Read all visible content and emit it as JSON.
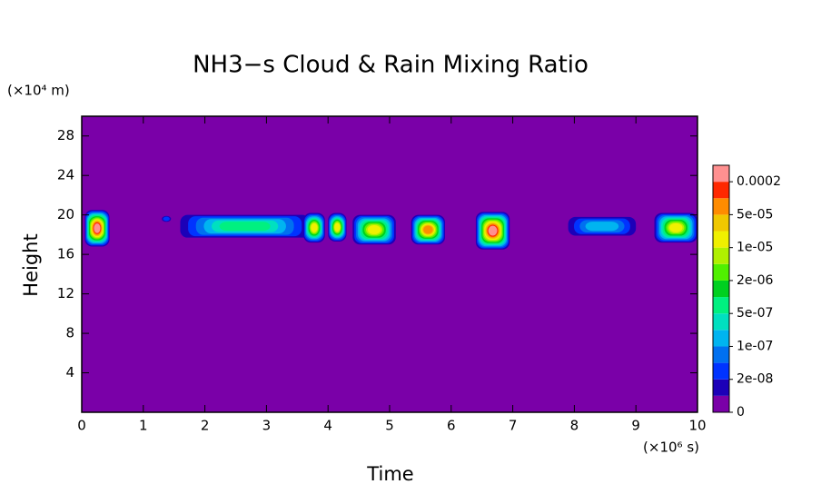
{
  "chart_data": {
    "type": "contour",
    "title": "NH3−s Cloud & Rain Mixing Ratio",
    "x_label": "Time",
    "y_label": "Height",
    "x_unit": "(×10⁶ s)",
    "y_unit": "(×10⁴ m)",
    "xlim": [
      0,
      10
    ],
    "xticks": [
      0,
      1,
      2,
      3,
      4,
      5,
      6,
      7,
      8,
      9,
      10
    ],
    "ylim": [
      0,
      30
    ],
    "yticks": [
      4,
      8,
      12,
      16,
      20,
      24,
      28
    ],
    "colorbar": {
      "ticks": [
        0,
        {
          "value": 2e-08,
          "label": "2e-08"
        },
        {
          "value": 1e-07,
          "label": "1e-07"
        },
        {
          "value": 5e-07,
          "label": "5e-07"
        },
        {
          "value": 2e-06,
          "label": "2e-06"
        },
        {
          "value": 1e-05,
          "label": "1e-05"
        },
        {
          "value": 5e-05,
          "label": "5e-05"
        },
        0.0002
      ],
      "colors": [
        "#7a00a8",
        "#1c00b8",
        "#0033ff",
        "#0070f0",
        "#00b4f0",
        "#00e0c0",
        "#00f080",
        "#00d020",
        "#50f000",
        "#b0f000",
        "#f0f000",
        "#f0c800",
        "#ff8c00",
        "#ff2800",
        "#ff9090"
      ]
    },
    "cells": [
      {
        "x": [
          0.05,
          0.45
        ],
        "y": [
          16.8,
          20.5
        ],
        "peak": 0.0002
      },
      {
        "x": [
          1.3,
          1.45
        ],
        "y": [
          19.3,
          19.9
        ],
        "peak": 2e-08
      },
      {
        "x": [
          1.6,
          3.7
        ],
        "y": [
          17.7,
          20.0
        ],
        "peak": 5e-07
      },
      {
        "x": [
          3.6,
          3.95
        ],
        "y": [
          17.2,
          20.2
        ],
        "peak": 1e-05
      },
      {
        "x": [
          4.0,
          4.3
        ],
        "y": [
          17.3,
          20.2
        ],
        "peak": 1e-05
      },
      {
        "x": [
          4.4,
          5.1
        ],
        "y": [
          17.0,
          20.0
        ],
        "peak": 1e-05
      },
      {
        "x": [
          5.35,
          5.9
        ],
        "y": [
          17.0,
          20.0
        ],
        "peak": 5e-05
      },
      {
        "x": [
          6.4,
          6.95
        ],
        "y": [
          16.5,
          20.3
        ],
        "peak": 0.0002
      },
      {
        "x": [
          7.9,
          9.0
        ],
        "y": [
          17.9,
          19.8
        ],
        "peak": 1e-07
      },
      {
        "x": [
          9.3,
          10
        ],
        "y": [
          17.2,
          20.2
        ],
        "peak": 1e-05
      }
    ]
  }
}
